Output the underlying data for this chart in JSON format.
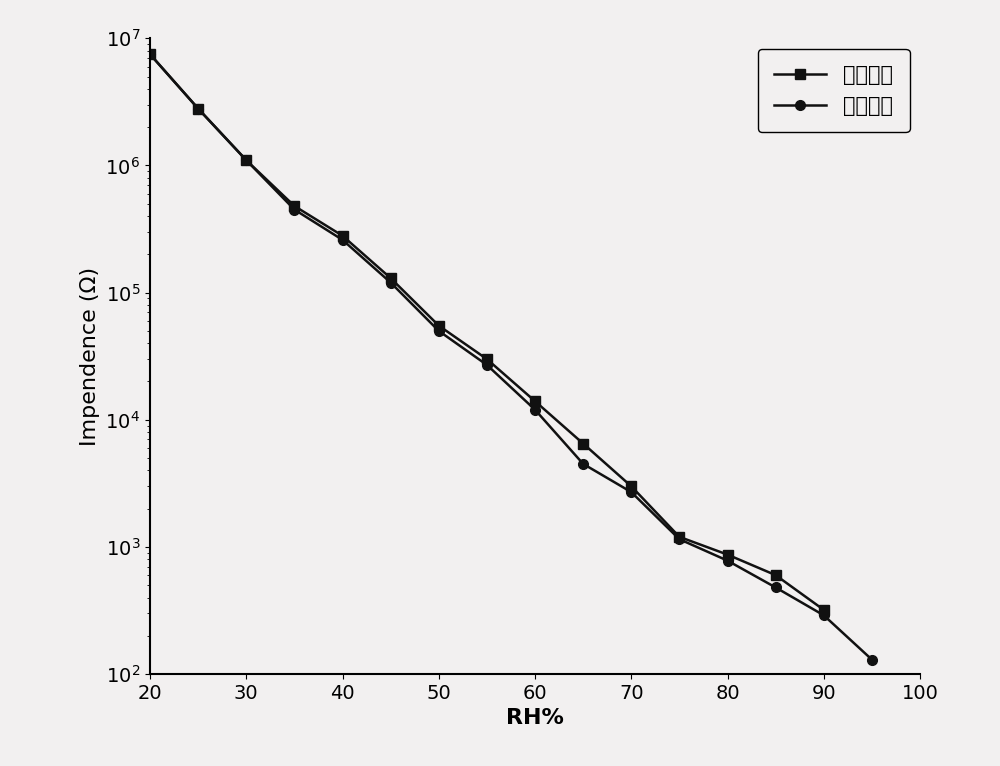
{
  "title": "",
  "xlabel": "RH%",
  "ylabel_main": "Impendence (Ω)",
  "xlim": [
    20,
    100
  ],
  "ylim_log": [
    100.0,
    10000000.0
  ],
  "xticks": [
    20,
    30,
    40,
    50,
    60,
    70,
    80,
    90,
    100
  ],
  "series1_label": "吸湿过程",
  "series2_label": "脱湿过程",
  "series1_x": [
    20,
    25,
    30,
    35,
    40,
    45,
    50,
    55,
    60,
    65,
    70,
    75,
    80,
    85,
    90
  ],
  "series1_y": [
    7500000,
    2800000,
    1100000,
    480000,
    280000,
    130000,
    55000,
    30000,
    14000,
    6500,
    3000,
    1200,
    870,
    600,
    320
  ],
  "series2_x": [
    20,
    25,
    30,
    35,
    40,
    45,
    50,
    55,
    60,
    65,
    70,
    75,
    80,
    85,
    90,
    95
  ],
  "series2_y": [
    7500000,
    2800000,
    1100000,
    450000,
    260000,
    120000,
    50000,
    27000,
    12000,
    4500,
    2700,
    1150,
    780,
    480,
    290,
    130
  ],
  "line_color": "#111111",
  "marker1": "s",
  "marker2": "o",
  "markersize": 7,
  "linewidth": 1.8,
  "background_color": "#f2f0f0",
  "plot_bg_color": "#f2f0f0",
  "legend_fontsize": 15,
  "axis_label_fontsize": 16,
  "tick_fontsize": 14
}
